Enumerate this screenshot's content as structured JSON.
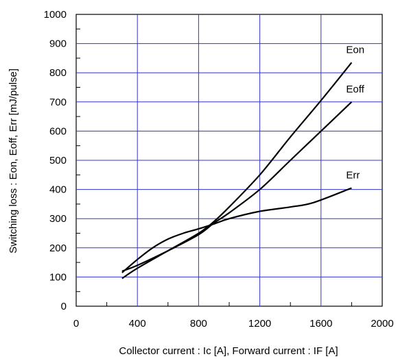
{
  "chart_data": {
    "type": "line",
    "title": "",
    "xlabel": "Collector current : Ic [A], Forward current : IF [A]",
    "ylabel": "Switching loss : Eon, Eoff, Err [mJ/pulse]",
    "xlim": [
      0,
      2000
    ],
    "ylim": [
      0,
      1000
    ],
    "x_ticks": [
      0,
      400,
      800,
      1200,
      1600,
      2000
    ],
    "y_ticks": [
      0,
      100,
      200,
      300,
      400,
      500,
      600,
      700,
      800,
      900,
      1000
    ],
    "grid": true,
    "grid_color": "#3333cc",
    "line_color": "#000000",
    "series": [
      {
        "name": "Eon",
        "x": [
          300,
          400,
          600,
          800,
          900,
          1000,
          1200,
          1400,
          1600,
          1800
        ],
        "y": [
          95,
          130,
          190,
          250,
          290,
          340,
          450,
          580,
          705,
          835
        ]
      },
      {
        "name": "Eoff",
        "x": [
          300,
          400,
          600,
          800,
          900,
          1000,
          1200,
          1400,
          1600,
          1800
        ],
        "y": [
          120,
          140,
          190,
          245,
          285,
          320,
          400,
          500,
          600,
          700
        ]
      },
      {
        "name": "Err",
        "x": [
          300,
          400,
          500,
          600,
          700,
          800,
          900,
          1000,
          1200,
          1400,
          1550,
          1800
        ],
        "y": [
          115,
          160,
          200,
          230,
          250,
          265,
          282,
          300,
          325,
          340,
          355,
          405
        ]
      }
    ]
  }
}
